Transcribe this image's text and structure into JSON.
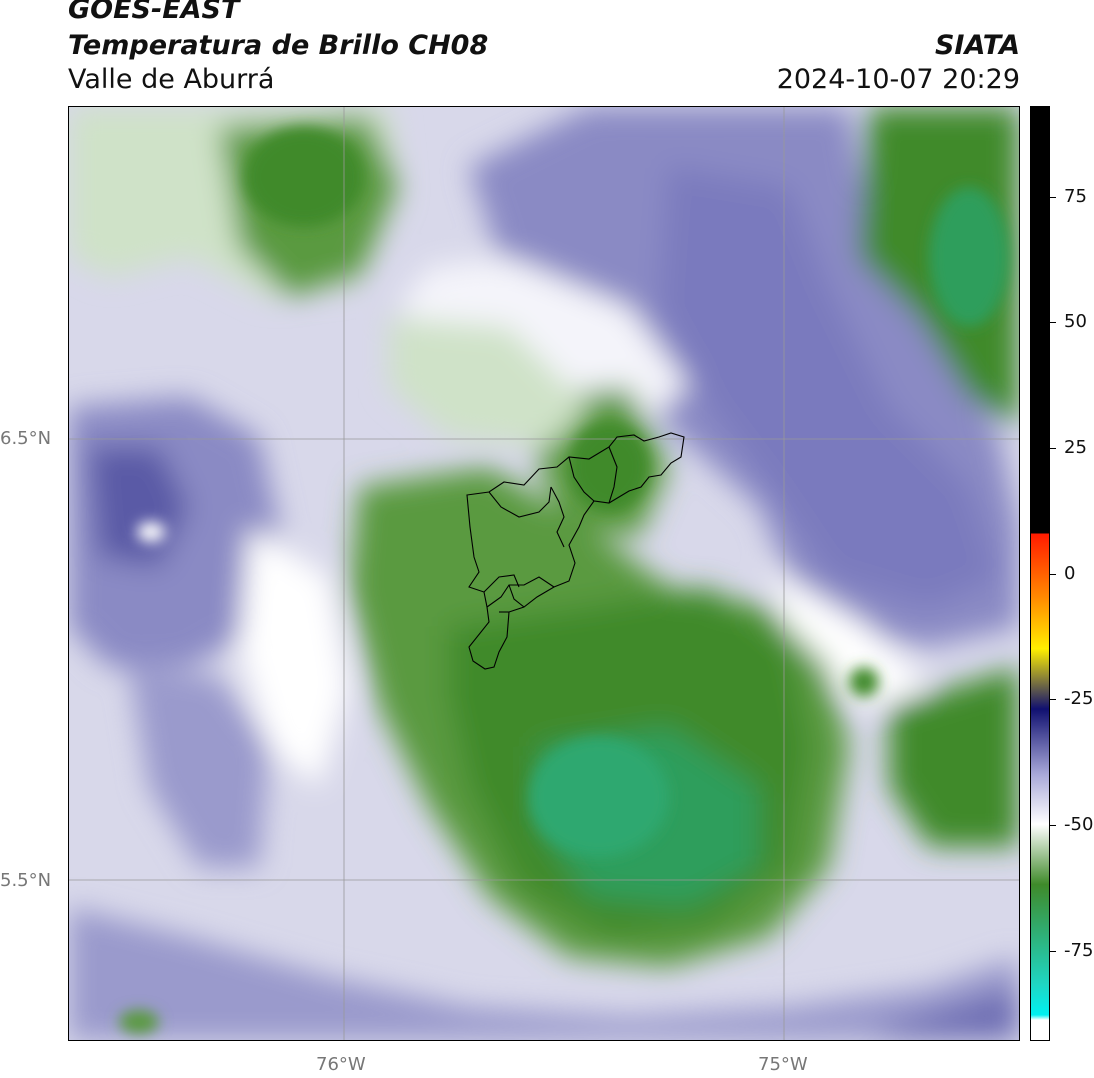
{
  "header": {
    "satellite": "GOES-EAST",
    "product": "Temperatura de Brillo CH08",
    "region": "Valle de Aburrá",
    "organization": "SIATA",
    "timestamp": "2024-10-07 20:29"
  },
  "map": {
    "lat_labels": [
      "6.5°N",
      "5.5°N"
    ],
    "lon_labels": [
      "76°W",
      "75°W"
    ],
    "boundary": "municipal outlines of Valle de Aburrá",
    "palette": {
      "deep_green": "#3f8a2a",
      "teal_green": "#2f9e5c",
      "light_green": "#cfe2c8",
      "white": "#ffffff",
      "lavender": "#d8d8ea",
      "purple": "#8a8ac4",
      "deep_purple": "#5a5aa6"
    }
  },
  "colorbar": {
    "ticks": [
      "75",
      "50",
      "25",
      "0",
      "-25",
      "-50",
      "-75"
    ],
    "tick_values": [
      75,
      50,
      25,
      0,
      -25,
      -50,
      -75
    ],
    "range": [
      -93,
      93
    ],
    "colors": {
      "black": "#000000",
      "red": "#ff1a00",
      "orange": "#ff8c00",
      "yellow": "#ffee00",
      "navy": "#101070",
      "lavender": "#a8a8d8",
      "white": "#ffffff",
      "green": "#3f8a2a",
      "teal": "#1fd6c4",
      "cyan": "#00f0f0"
    }
  }
}
